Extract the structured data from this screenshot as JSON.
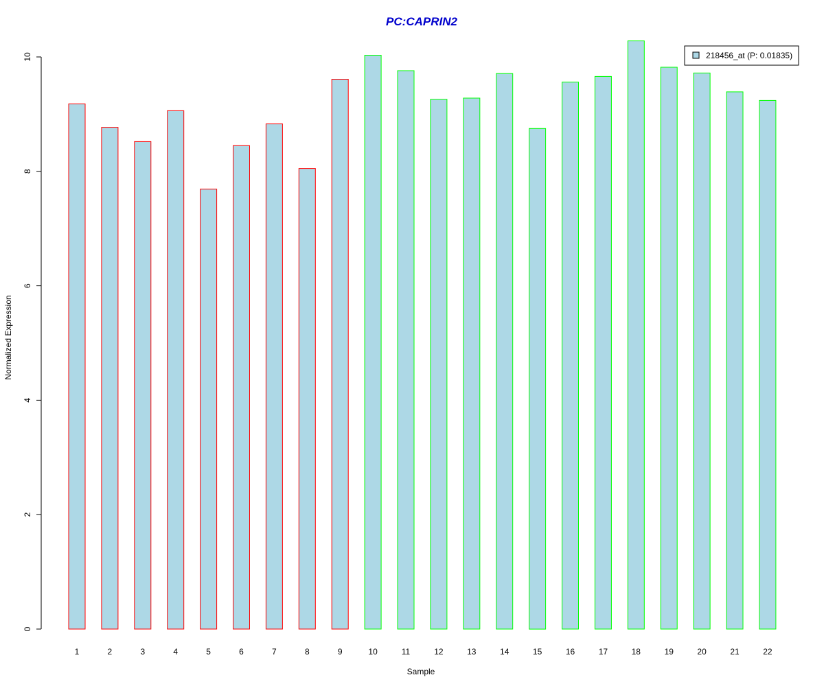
{
  "chart_data": {
    "type": "bar",
    "title": "PC:CAPRIN2",
    "xlabel": "Sample",
    "ylabel": "Normalized Expression",
    "categories": [
      "1",
      "2",
      "3",
      "4",
      "5",
      "6",
      "7",
      "8",
      "9",
      "10",
      "11",
      "12",
      "13",
      "14",
      "15",
      "16",
      "17",
      "18",
      "19",
      "20",
      "21",
      "22"
    ],
    "series": [
      {
        "name": "218456_at (P: 0.01835)",
        "values": [
          9.18,
          8.77,
          8.52,
          9.06,
          7.69,
          8.45,
          8.83,
          8.05,
          9.61,
          10.03,
          9.76,
          9.26,
          9.28,
          9.71,
          8.75,
          9.56,
          9.66,
          10.28,
          9.82,
          9.72,
          9.39,
          9.24
        ]
      }
    ],
    "ylim": [
      0,
      10
    ],
    "yticks": [
      0,
      2,
      4,
      6,
      8,
      10
    ],
    "grid": false,
    "legend_position": "top-right",
    "colors": {
      "bar_fill": "#add8e6",
      "group1_border": "#ff0000",
      "group2_border": "#00ff00",
      "title": "#0000cc"
    },
    "border_groups": [
      "group1",
      "group1",
      "group1",
      "group1",
      "group1",
      "group1",
      "group1",
      "group1",
      "group1",
      "group2",
      "group2",
      "group2",
      "group2",
      "group2",
      "group2",
      "group2",
      "group2",
      "group2",
      "group2",
      "group2",
      "group2",
      "group2"
    ]
  }
}
